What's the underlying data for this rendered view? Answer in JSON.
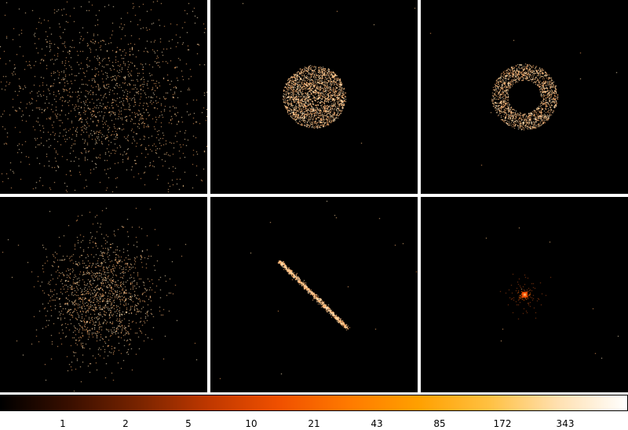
{
  "display": {
    "colormap": "heat",
    "colorbar_stops": [
      "#000000",
      "#3a0f00",
      "#7a2400",
      "#c03800",
      "#f05000",
      "#ff7a00",
      "#ffa000",
      "#ffc040",
      "#ffe0b0",
      "#ffffff"
    ],
    "frame_background": "#000000",
    "separator_color": "#ffffff",
    "frames": [
      {
        "id": "frame-1",
        "pattern": "gaussian-scatter",
        "counts": "sparse"
      },
      {
        "id": "frame-2",
        "pattern": "uniform-disk",
        "counts": "dense"
      },
      {
        "id": "frame-3",
        "pattern": "annulus",
        "counts": "dense"
      },
      {
        "id": "frame-4",
        "pattern": "gaussian-blob",
        "counts": "medium"
      },
      {
        "id": "frame-5",
        "pattern": "diagonal-line",
        "counts": "dense"
      },
      {
        "id": "frame-6",
        "pattern": "point-source",
        "counts": "bright"
      }
    ]
  },
  "colorbar": {
    "ticks": [
      "1",
      "2",
      "5",
      "10",
      "21",
      "43",
      "85",
      "172",
      "343"
    ]
  }
}
